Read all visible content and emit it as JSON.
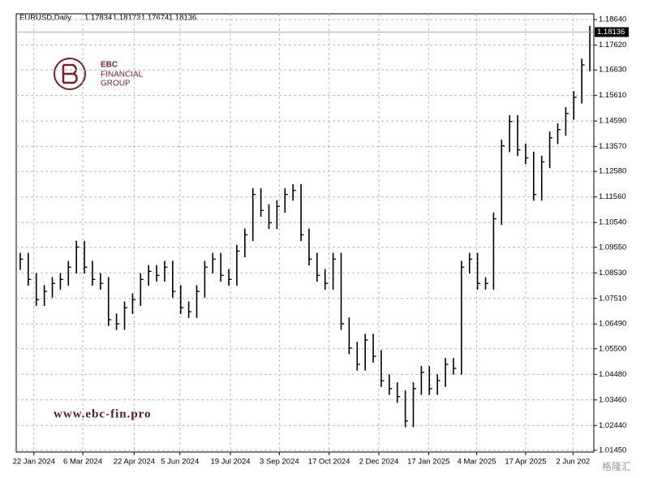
{
  "header": {
    "symbol": "EURUSD,Daily",
    "prices": [
      "1.17834",
      "1.18173",
      "1.17674",
      "1.18136"
    ]
  },
  "logo": {
    "brand": "EBC",
    "line1": "FINANCIAL",
    "line2": "GROUP",
    "url": "www.ebc-fin.pro"
  },
  "watermark": "格隆汇",
  "chart_data": {
    "type": "ohlc",
    "color": "#000000",
    "grid": true,
    "ylim": [
      1.0138,
      1.1887
    ],
    "xlim": [
      0,
      72
    ],
    "yticks": [
      {
        "value": 1.1864,
        "label": "1.18640"
      },
      {
        "value": 1.1762,
        "label": "1.17620"
      },
      {
        "value": 1.1663,
        "label": "1.16630"
      },
      {
        "value": 1.1561,
        "label": "1.15610"
      },
      {
        "value": 1.1459,
        "label": "1.14590"
      },
      {
        "value": 1.1357,
        "label": "1.13570"
      },
      {
        "value": 1.1258,
        "label": "1.12580"
      },
      {
        "value": 1.1156,
        "label": "1.11560"
      },
      {
        "value": 1.1054,
        "label": "1.10540"
      },
      {
        "value": 1.0955,
        "label": "1.09550"
      },
      {
        "value": 1.0853,
        "label": "1.08530"
      },
      {
        "value": 1.0751,
        "label": "1.07510"
      },
      {
        "value": 1.0649,
        "label": "1.06490"
      },
      {
        "value": 1.055,
        "label": "1.05500"
      },
      {
        "value": 1.0448,
        "label": "1.04480"
      },
      {
        "value": 1.0346,
        "label": "1.03460"
      },
      {
        "value": 1.0244,
        "label": "1.02440"
      },
      {
        "value": 1.0145,
        "label": "1.01450"
      }
    ],
    "xticks": [
      {
        "value": 2.2,
        "label": "22 Jan 2024"
      },
      {
        "value": 8.3,
        "label": "6 Mar 2024"
      },
      {
        "value": 14.7,
        "label": "22 Apr 2024"
      },
      {
        "value": 20.4,
        "label": "5 Jun 2024"
      },
      {
        "value": 26.7,
        "label": "19 Jul 2024"
      },
      {
        "value": 32.8,
        "label": "3 Sep 2024"
      },
      {
        "value": 39.0,
        "label": "17 Oct 2024"
      },
      {
        "value": 45.2,
        "label": "2 Dec 2024"
      },
      {
        "value": 51.4,
        "label": "17 Jan 2025"
      },
      {
        "value": 57.4,
        "label": "4 Mar 2025"
      },
      {
        "value": 63.5,
        "label": "17 Apr 2025"
      },
      {
        "value": 69.4,
        "label": "2 Jun 202"
      }
    ],
    "high": [
      1.0933,
      1.0933,
      1.0852,
      1.0804,
      1.0836,
      1.0852,
      1.0901,
      1.0981,
      1.0981,
      1.0901,
      1.0852,
      1.0836,
      1.0691,
      1.0739,
      1.0771,
      1.0852,
      1.0884,
      1.0884,
      1.0901,
      1.0901,
      1.0804,
      1.0739,
      1.0804,
      1.0901,
      1.0933,
      1.0933,
      1.0868,
      1.0965,
      1.103,
      1.1191,
      1.1191,
      1.1127,
      1.1143,
      1.1191,
      1.1207,
      1.1207,
      1.103,
      1.0933,
      1.0868,
      1.0933,
      1.0933,
      1.0675,
      1.0578,
      1.061,
      1.061,
      1.0545,
      1.0448,
      1.0416,
      1.0384,
      1.0416,
      1.0481,
      1.0481,
      1.0448,
      1.0513,
      1.0513,
      1.0901,
      1.0933,
      1.0933,
      1.0836,
      1.1094,
      1.1385,
      1.1482,
      1.1482,
      1.1369,
      1.1337,
      1.1321,
      1.1417,
      1.145,
      1.1514,
      1.1579,
      1.1708,
      1.1839
    ],
    "low": [
      1.0865,
      1.0802,
      1.0721,
      1.0721,
      1.0754,
      1.0786,
      1.0802,
      1.0851,
      1.0851,
      1.0802,
      1.0786,
      1.0641,
      1.0625,
      1.0625,
      1.0689,
      1.0721,
      1.0802,
      1.0818,
      1.0818,
      1.0754,
      1.0689,
      1.0673,
      1.0673,
      1.0754,
      1.0851,
      1.0818,
      1.0802,
      1.0802,
      1.0915,
      1.098,
      1.1077,
      1.1028,
      1.1028,
      1.1093,
      1.1141,
      1.098,
      1.0883,
      1.0818,
      1.0786,
      1.0786,
      1.0625,
      1.0528,
      1.0463,
      1.0463,
      1.0495,
      1.0398,
      1.0366,
      1.0334,
      1.0237,
      1.0237,
      1.0366,
      1.0366,
      1.0366,
      1.0398,
      1.0447,
      1.0447,
      1.0851,
      1.0786,
      1.0786,
      1.0786,
      1.1044,
      1.1335,
      1.1319,
      1.1287,
      1.1141,
      1.1141,
      1.1271,
      1.1367,
      1.14,
      1.1464,
      1.1529,
      1.1658
    ],
    "close": [
      1.0908,
      1.0827,
      1.0746,
      1.0779,
      1.0811,
      1.0827,
      1.0876,
      1.0956,
      1.0876,
      1.0827,
      1.0811,
      1.0666,
      1.065,
      1.0714,
      1.0746,
      1.0827,
      1.0859,
      1.0843,
      1.0876,
      1.0779,
      1.0714,
      1.0698,
      1.0779,
      1.0876,
      1.0908,
      1.0843,
      1.0827,
      1.094,
      1.1005,
      1.1166,
      1.1102,
      1.1053,
      1.1118,
      1.1166,
      1.1182,
      1.1005,
      1.0908,
      1.0843,
      1.0811,
      1.0908,
      1.065,
      1.0553,
      1.0488,
      1.0585,
      1.052,
      1.0423,
      1.0391,
      1.0359,
      1.0262,
      1.0391,
      1.0456,
      1.0391,
      1.0423,
      1.0488,
      1.0472,
      1.0876,
      1.0908,
      1.0811,
      1.0811,
      1.1069,
      1.136,
      1.1457,
      1.1344,
      1.1312,
      1.1166,
      1.1296,
      1.1392,
      1.1425,
      1.1489,
      1.1554,
      1.1683,
      1.1814
    ]
  }
}
